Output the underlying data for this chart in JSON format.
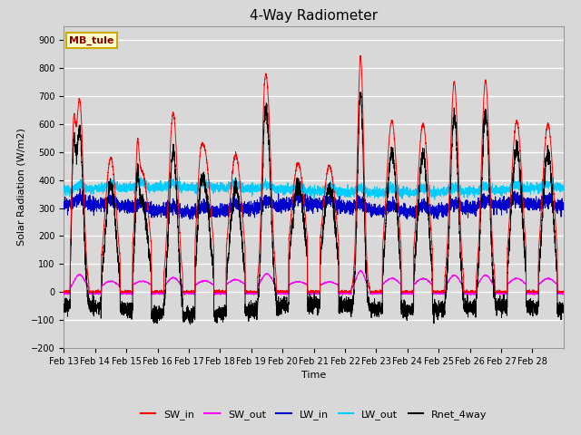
{
  "title": "4-Way Radiometer",
  "xlabel": "Time",
  "ylabel": "Solar Radiation (W/m2)",
  "ylim": [
    -200,
    950
  ],
  "yticks": [
    -200,
    -100,
    0,
    100,
    200,
    300,
    400,
    500,
    600,
    700,
    800,
    900
  ],
  "station_label": "MB_tule",
  "n_days": 16,
  "n_points_per_day": 288,
  "colors": {
    "SW_in": "#ff0000",
    "SW_out": "#ff00ff",
    "LW_in": "#0000cc",
    "LW_out": "#00ccff",
    "Rnet_4way": "#000000"
  },
  "background_color": "#d8d8d8",
  "plot_bg_color": "#d8d8d8",
  "grid_color": "#ffffff",
  "station_box_color": "#ffffcc",
  "station_text_color": "#8b0000",
  "sw_peaks": [
    690,
    480,
    430,
    640,
    500,
    490,
    720,
    460,
    450,
    840,
    610,
    600,
    750,
    755,
    610,
    600
  ],
  "sw_widths": [
    0.12,
    0.18,
    0.22,
    0.14,
    0.2,
    0.2,
    0.13,
    0.22,
    0.22,
    0.1,
    0.18,
    0.18,
    0.13,
    0.13,
    0.18,
    0.18
  ],
  "lw_in_base": 300,
  "lw_out_base": 360
}
